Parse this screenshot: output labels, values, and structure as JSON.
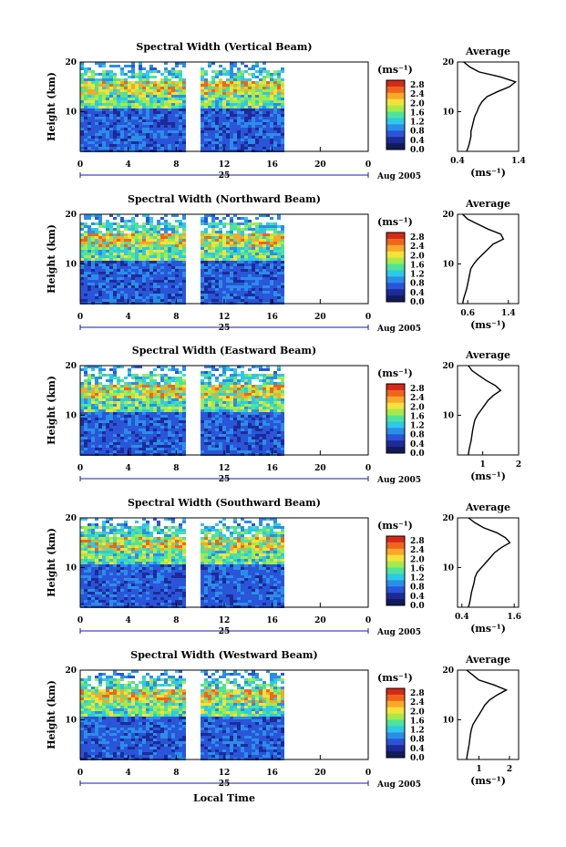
{
  "figure": {
    "xlabel": "Local Time",
    "date_label": "Aug 2005",
    "day_label": "25",
    "colorbar_unit": "(ms⁻¹)",
    "colorbar_ticks": [
      "2.8",
      "2.4",
      "2.0",
      "1.6",
      "1.2",
      "0.8",
      "0.4",
      "0.0"
    ],
    "colorbar_colors": [
      "#d42a1a",
      "#f0651c",
      "#f8a82a",
      "#f4e23a",
      "#a6ea4a",
      "#4ee39a",
      "#2ec8e8",
      "#2a8ee8",
      "#2a55d8",
      "#1e2a98",
      "#111a5a"
    ],
    "profile_title": "Average",
    "profile_xlabel": "(ms⁻¹)",
    "y_ticks": [
      "20",
      "10"
    ],
    "x_ticks": [
      "0",
      "4",
      "8",
      "12",
      "16",
      "20",
      "0"
    ]
  },
  "chart_data": [
    {
      "type": "heatmap",
      "title": "Spectral Width (Vertical Beam)",
      "ylabel": "Height (km)",
      "xlim": [
        0,
        24
      ],
      "ylim": [
        2,
        20
      ],
      "data_gaps": [
        [
          8.7,
          9.8
        ]
      ],
      "data_end": 16.8,
      "profile": {
        "title": "Average",
        "xticks": [
          "0.4",
          "1.4"
        ],
        "xlim": [
          0.4,
          1.4
        ],
        "points": [
          [
            0.55,
            2
          ],
          [
            0.58,
            3
          ],
          [
            0.6,
            4
          ],
          [
            0.62,
            5
          ],
          [
            0.62,
            6
          ],
          [
            0.64,
            7
          ],
          [
            0.66,
            8
          ],
          [
            0.68,
            9
          ],
          [
            0.72,
            10
          ],
          [
            0.75,
            11
          ],
          [
            0.8,
            12
          ],
          [
            0.88,
            13
          ],
          [
            1.05,
            14
          ],
          [
            1.25,
            15
          ],
          [
            1.35,
            16
          ],
          [
            1.1,
            17
          ],
          [
            0.75,
            18
          ],
          [
            0.6,
            19
          ],
          [
            0.5,
            20
          ]
        ]
      }
    },
    {
      "type": "heatmap",
      "title": "Spectral Width (Northward Beam)",
      "ylabel": "Height (km)",
      "xlim": [
        0,
        24
      ],
      "ylim": [
        2,
        20
      ],
      "data_gaps": [
        [
          8.7,
          9.8
        ]
      ],
      "data_end": 16.8,
      "profile": {
        "title": "Average",
        "xticks": [
          "0.6",
          "1.4"
        ],
        "xlim": [
          0.4,
          1.6
        ],
        "points": [
          [
            0.5,
            2
          ],
          [
            0.52,
            3
          ],
          [
            0.55,
            4
          ],
          [
            0.58,
            5
          ],
          [
            0.6,
            6
          ],
          [
            0.62,
            7
          ],
          [
            0.64,
            8
          ],
          [
            0.66,
            9
          ],
          [
            0.72,
            10
          ],
          [
            0.8,
            11
          ],
          [
            0.9,
            12
          ],
          [
            1.0,
            13
          ],
          [
            1.1,
            14
          ],
          [
            1.3,
            15
          ],
          [
            1.25,
            16
          ],
          [
            1.0,
            17
          ],
          [
            0.8,
            18
          ],
          [
            0.6,
            19
          ],
          [
            0.5,
            20
          ]
        ]
      }
    },
    {
      "type": "heatmap",
      "title": "Spectral Width (Eastward Beam)",
      "ylabel": "Height (km)",
      "xlim": [
        0,
        24
      ],
      "ylim": [
        2,
        20
      ],
      "data_gaps": [
        [
          8.7,
          9.8
        ]
      ],
      "data_end": 16.8,
      "profile": {
        "title": "Average",
        "xticks": [
          "1",
          "2"
        ],
        "xlim": [
          0.3,
          2.0
        ],
        "points": [
          [
            0.6,
            2
          ],
          [
            0.62,
            3
          ],
          [
            0.65,
            4
          ],
          [
            0.68,
            5
          ],
          [
            0.7,
            6
          ],
          [
            0.72,
            7
          ],
          [
            0.75,
            8
          ],
          [
            0.78,
            9
          ],
          [
            0.85,
            10
          ],
          [
            0.95,
            11
          ],
          [
            1.05,
            12
          ],
          [
            1.15,
            13
          ],
          [
            1.3,
            14
          ],
          [
            1.5,
            15
          ],
          [
            1.35,
            16
          ],
          [
            1.1,
            17
          ],
          [
            0.9,
            18
          ],
          [
            0.7,
            19
          ],
          [
            0.6,
            20
          ]
        ]
      }
    },
    {
      "type": "heatmap",
      "title": "Spectral Width (Southward Beam)",
      "ylabel": "Height (km)",
      "xlim": [
        0,
        24
      ],
      "ylim": [
        2,
        20
      ],
      "data_gaps": [
        [
          8.7,
          9.8
        ]
      ],
      "data_end": 16.8,
      "profile": {
        "title": "Average",
        "xticks": [
          "0.4",
          "1.6"
        ],
        "xlim": [
          0.3,
          1.7
        ],
        "points": [
          [
            0.55,
            2
          ],
          [
            0.58,
            3
          ],
          [
            0.6,
            4
          ],
          [
            0.62,
            5
          ],
          [
            0.65,
            6
          ],
          [
            0.68,
            7
          ],
          [
            0.7,
            8
          ],
          [
            0.75,
            9
          ],
          [
            0.85,
            10
          ],
          [
            0.95,
            11
          ],
          [
            1.05,
            12
          ],
          [
            1.15,
            13
          ],
          [
            1.3,
            14
          ],
          [
            1.5,
            15
          ],
          [
            1.4,
            16
          ],
          [
            1.2,
            17
          ],
          [
            0.9,
            18
          ],
          [
            0.7,
            19
          ],
          [
            0.55,
            20
          ]
        ]
      }
    },
    {
      "type": "heatmap",
      "title": "Spectral Width (Westward Beam)",
      "ylabel": "Height (km)",
      "xlim": [
        0,
        24
      ],
      "ylim": [
        2,
        20
      ],
      "data_gaps": [
        [
          8.7,
          9.8
        ]
      ],
      "data_end": 16.8,
      "profile": {
        "title": "Average",
        "xticks": [
          "1",
          "2"
        ],
        "xlim": [
          0.3,
          2.3
        ],
        "points": [
          [
            0.6,
            2
          ],
          [
            0.62,
            3
          ],
          [
            0.65,
            4
          ],
          [
            0.68,
            5
          ],
          [
            0.7,
            6
          ],
          [
            0.72,
            7
          ],
          [
            0.75,
            8
          ],
          [
            0.8,
            9
          ],
          [
            0.9,
            10
          ],
          [
            1.0,
            11
          ],
          [
            1.1,
            12
          ],
          [
            1.2,
            13
          ],
          [
            1.35,
            14
          ],
          [
            1.6,
            15
          ],
          [
            1.9,
            16
          ],
          [
            1.5,
            17
          ],
          [
            1.0,
            18
          ],
          [
            0.8,
            19
          ],
          [
            0.6,
            20
          ]
        ]
      }
    }
  ]
}
